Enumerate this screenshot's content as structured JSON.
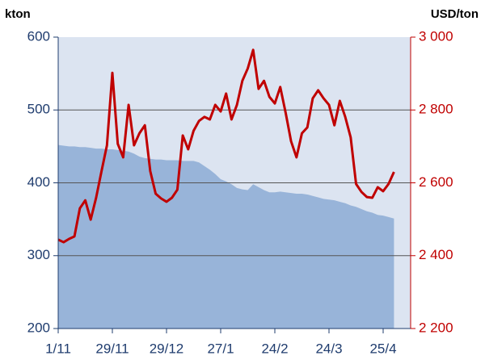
{
  "chart_data": {
    "type": "area-line",
    "ylabel": "kton",
    "y2label": "USD/ton",
    "categories": [
      "1/11",
      null,
      null,
      null,
      null,
      null,
      null,
      null,
      null,
      null,
      "29/11",
      null,
      null,
      null,
      null,
      null,
      null,
      null,
      null,
      null,
      "29/12",
      null,
      null,
      null,
      null,
      null,
      null,
      null,
      null,
      null,
      "27/1",
      null,
      null,
      null,
      null,
      null,
      null,
      null,
      null,
      null,
      "24/2",
      null,
      null,
      null,
      null,
      null,
      null,
      null,
      null,
      null,
      "24/3",
      null,
      null,
      null,
      null,
      null,
      null,
      null,
      null,
      null,
      "25/4",
      null,
      null
    ],
    "series": [
      {
        "kind": "area",
        "axis": "y",
        "color": "#98b4d9",
        "values": [
          452,
          451,
          450,
          450,
          449,
          449,
          448,
          447,
          447,
          446,
          446,
          445,
          444,
          443,
          440,
          436,
          434,
          433,
          432,
          432,
          431,
          431,
          431,
          430,
          430,
          430,
          428,
          423,
          418,
          412,
          405,
          402,
          398,
          393,
          391,
          390,
          398,
          394,
          390,
          387,
          387,
          388,
          387,
          386,
          385,
          385,
          384,
          382,
          380,
          378,
          377,
          376,
          374,
          372,
          369,
          367,
          364,
          361,
          359,
          356,
          355,
          353,
          351
        ]
      },
      {
        "kind": "line",
        "axis": "y2",
        "color": "#c00000",
        "values": [
          2444,
          2437,
          2446,
          2453,
          2530,
          2552,
          2499,
          2559,
          2632,
          2703,
          2902,
          2707,
          2670,
          2814,
          2703,
          2736,
          2758,
          2632,
          2570,
          2557,
          2548,
          2559,
          2581,
          2730,
          2692,
          2743,
          2770,
          2781,
          2774,
          2814,
          2796,
          2845,
          2774,
          2814,
          2880,
          2914,
          2965,
          2858,
          2880,
          2836,
          2818,
          2863,
          2792,
          2714,
          2670,
          2736,
          2752,
          2832,
          2854,
          2832,
          2814,
          2758,
          2825,
          2781,
          2725,
          2597,
          2575,
          2561,
          2559,
          2588,
          2577,
          2597,
          2630
        ]
      }
    ],
    "ylim": [
      200,
      600
    ],
    "yticks": [
      200,
      300,
      400,
      500,
      600
    ],
    "y2lim": [
      2200,
      3000
    ],
    "y2ticks": [
      {
        "value": 2200,
        "label": "2 200"
      },
      {
        "value": 2400,
        "label": "2 400"
      },
      {
        "value": 2600,
        "label": "2 600"
      },
      {
        "value": 2800,
        "label": "2 800"
      },
      {
        "value": 3000,
        "label": "3 000"
      }
    ],
    "grid": true,
    "background": "#dce4f1"
  }
}
